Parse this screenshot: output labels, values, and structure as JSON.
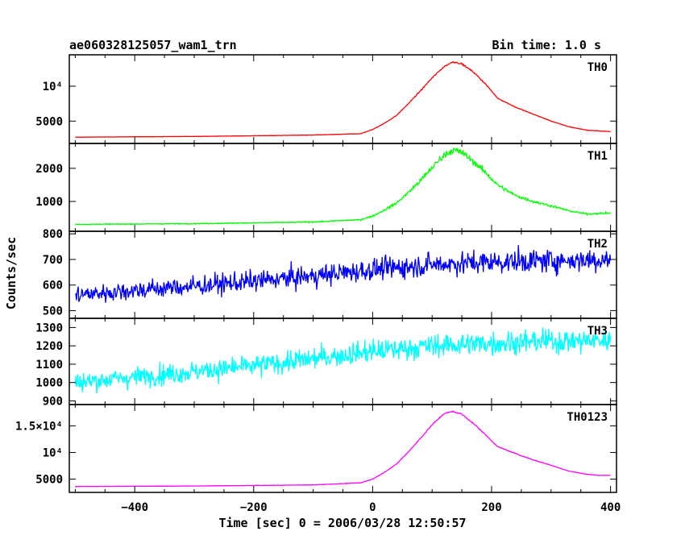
{
  "chart_data": {
    "type": "line",
    "title": "ae060328125057_wam1_trn",
    "subtitle": "Bin time: 1.0 s",
    "xlabel": "Time [sec] 0 = 2006/03/28 12:50:57",
    "ylabel": "Counts/sec",
    "xlim": [
      -510,
      410
    ],
    "x_ticks": [
      -400,
      -200,
      0,
      200,
      400
    ],
    "x_tick_labels": [
      "−400",
      "−200",
      "0",
      "200",
      "400"
    ],
    "grid": false,
    "panels": [
      {
        "name": "TH0",
        "color": "#ff0000",
        "ylim": [
          1800,
          14500
        ],
        "y_ticks": [
          5000,
          10000
        ],
        "y_tick_labels": [
          "5000",
          "10⁴"
        ],
        "noise": 0.006,
        "x": [
          -500,
          -300,
          -100,
          -20,
          0,
          20,
          40,
          60,
          80,
          100,
          120,
          135,
          150,
          170,
          190,
          210,
          240,
          270,
          300,
          330,
          360,
          380,
          400
        ],
        "y": [
          2700,
          2800,
          3000,
          3200,
          3800,
          4700,
          5800,
          7500,
          9300,
          11200,
          12800,
          13500,
          13200,
          12000,
          10300,
          8300,
          7000,
          6000,
          5000,
          4200,
          3700,
          3600,
          3500
        ]
      },
      {
        "name": "TH1",
        "color": "#00ff00",
        "ylim": [
          100,
          2750
        ],
        "y_ticks": [
          1000,
          2000
        ],
        "y_tick_labels": [
          "1000",
          "2000"
        ],
        "noise": 0.035,
        "x": [
          -500,
          -300,
          -100,
          -20,
          0,
          20,
          40,
          60,
          80,
          100,
          120,
          135,
          150,
          170,
          190,
          210,
          240,
          270,
          300,
          330,
          360,
          380,
          400
        ],
        "y": [
          310,
          330,
          380,
          450,
          560,
          740,
          950,
          1270,
          1620,
          2020,
          2400,
          2550,
          2480,
          2200,
          1870,
          1500,
          1180,
          1000,
          870,
          720,
          620,
          640,
          650
        ]
      },
      {
        "name": "TH2",
        "color": "#0000ff",
        "ylim": [
          470,
          810
        ],
        "y_ticks": [
          500,
          600,
          700,
          800
        ],
        "y_tick_labels": [
          "500",
          "600",
          "700",
          "800"
        ],
        "noise": 0.055,
        "x": [
          -500,
          -400,
          -300,
          -200,
          -100,
          0,
          100,
          200,
          300,
          400
        ],
        "y": [
          560,
          580,
          595,
          615,
          635,
          660,
          680,
          690,
          695,
          700
        ]
      },
      {
        "name": "TH3",
        "color": "#00ffff",
        "ylim": [
          880,
          1350
        ],
        "y_ticks": [
          900,
          1000,
          1100,
          1200,
          1300
        ],
        "y_tick_labels": [
          "900",
          "1000",
          "1100",
          "1200",
          "1300"
        ],
        "noise": 0.045,
        "x": [
          -500,
          -400,
          -300,
          -200,
          -100,
          0,
          100,
          200,
          300,
          400
        ],
        "y": [
          1000,
          1030,
          1060,
          1090,
          1130,
          1170,
          1200,
          1215,
          1225,
          1230
        ]
      },
      {
        "name": "TH0123",
        "color": "#ff00ff",
        "ylim": [
          2500,
          19000
        ],
        "y_ticks": [
          5000,
          10000,
          15000
        ],
        "y_tick_labels": [
          "5000",
          "10⁴",
          "1.5×10⁴"
        ],
        "noise": 0.006,
        "x": [
          -500,
          -300,
          -100,
          -20,
          0,
          20,
          40,
          60,
          80,
          100,
          120,
          135,
          150,
          170,
          190,
          210,
          240,
          270,
          300,
          330,
          360,
          380,
          400
        ],
        "y": [
          3600,
          3700,
          3900,
          4300,
          5000,
          6300,
          7800,
          10100,
          12600,
          15200,
          17300,
          17700,
          17200,
          15400,
          13300,
          11100,
          9800,
          8600,
          7600,
          6500,
          5900,
          5700,
          5700
        ]
      }
    ]
  }
}
